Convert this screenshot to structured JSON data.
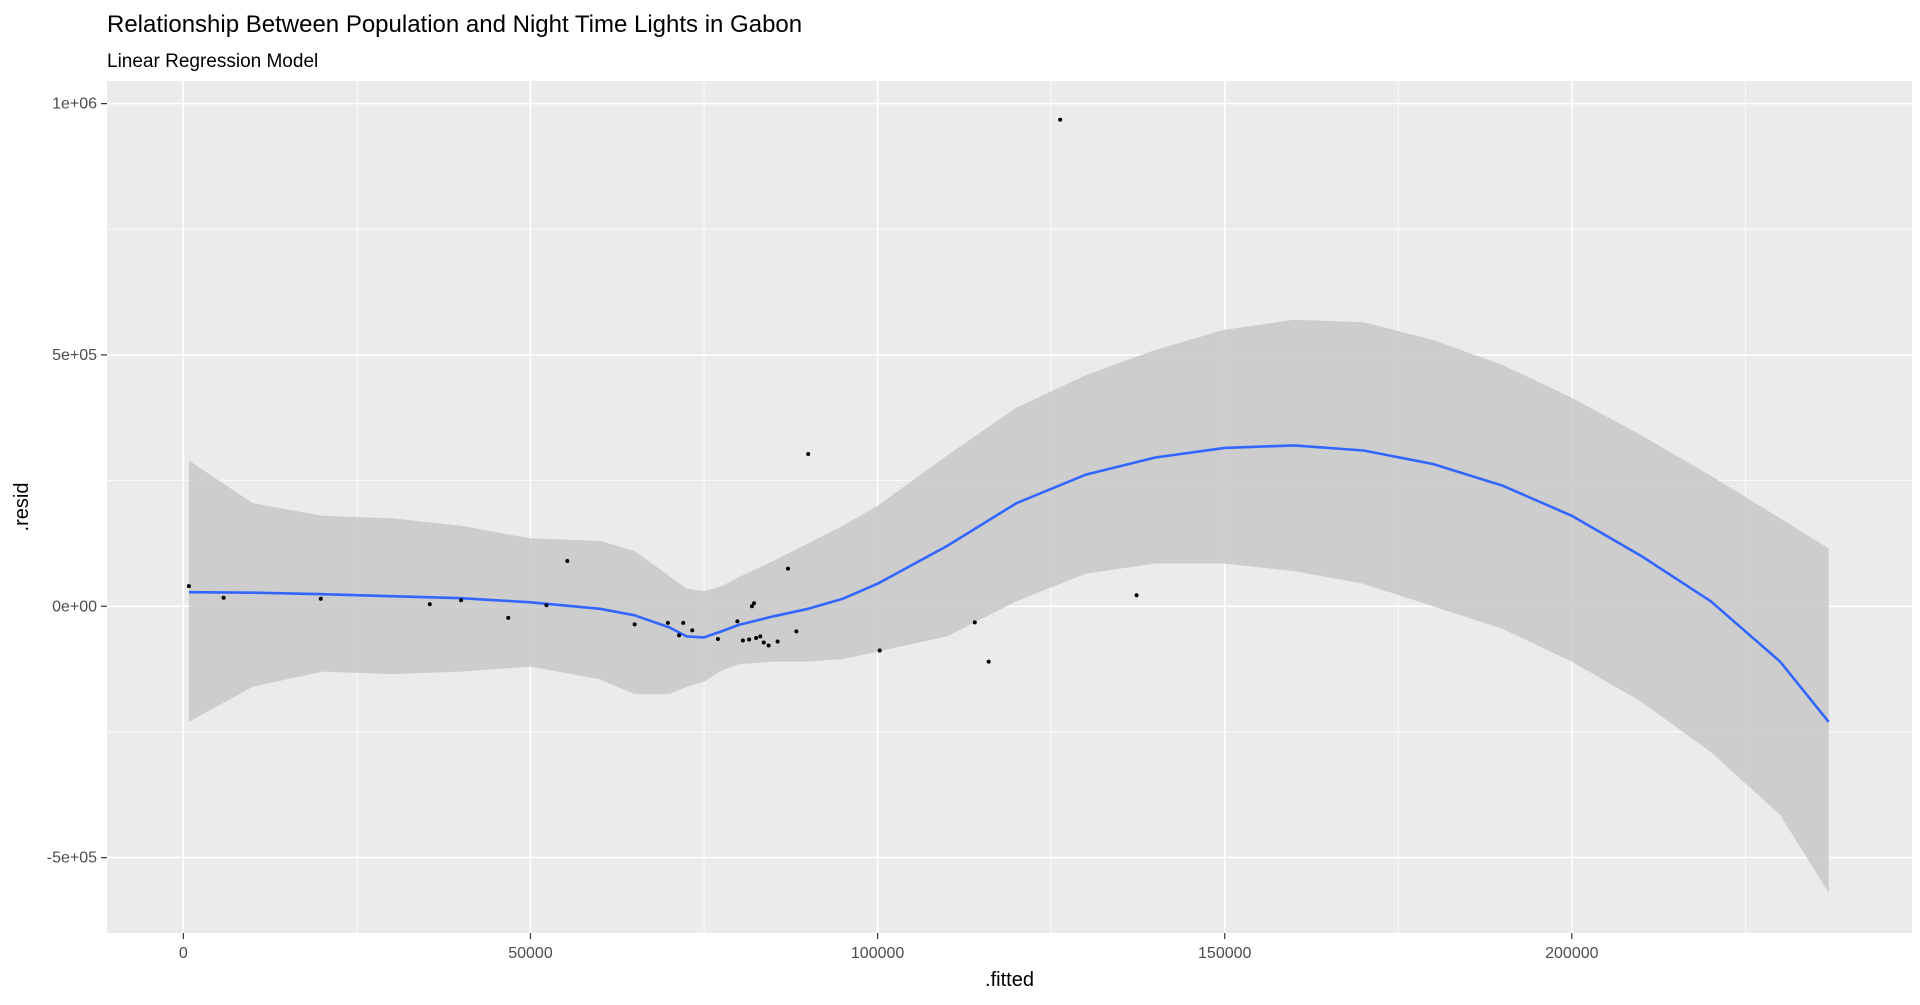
{
  "chart_data": {
    "type": "scatter",
    "title": "Relationship Between Population and Night Time Lights in Gabon",
    "subtitle": "Linear Regression Model",
    "xlabel": ".fitted",
    "ylabel": ".resid",
    "xlim": [
      -11000,
      249000
    ],
    "ylim": [
      -650000,
      1045000
    ],
    "x_ticks": [
      0,
      50000,
      100000,
      150000,
      200000
    ],
    "x_tick_labels": [
      "0",
      "50000",
      "100000",
      "150000",
      "200000"
    ],
    "y_ticks": [
      -500000,
      0,
      500000,
      1000000
    ],
    "y_tick_labels": [
      "-5e+05",
      "0e+00",
      "5e+05",
      "1e+06"
    ],
    "grid": true,
    "colors": {
      "panel_background": "#ebebeb",
      "grid_line": "#ffffff",
      "points": "#000000",
      "smooth_line": "#3366ff",
      "confidence_band": "#c8c8c8"
    },
    "points": [
      {
        "x": 800,
        "y": 40000
      },
      {
        "x": 5800,
        "y": 17000
      },
      {
        "x": 19800,
        "y": 15000
      },
      {
        "x": 35500,
        "y": 4000
      },
      {
        "x": 40000,
        "y": 12000
      },
      {
        "x": 46800,
        "y": -23000
      },
      {
        "x": 52300,
        "y": 2000
      },
      {
        "x": 55300,
        "y": 90000
      },
      {
        "x": 65000,
        "y": -36000
      },
      {
        "x": 69800,
        "y": -33000
      },
      {
        "x": 71400,
        "y": -58000
      },
      {
        "x": 72000,
        "y": -33000
      },
      {
        "x": 73300,
        "y": -48000
      },
      {
        "x": 77000,
        "y": -65000
      },
      {
        "x": 79800,
        "y": -30000
      },
      {
        "x": 80600,
        "y": -68000
      },
      {
        "x": 81500,
        "y": -66000
      },
      {
        "x": 81900,
        "y": 0
      },
      {
        "x": 82200,
        "y": 6000
      },
      {
        "x": 82500,
        "y": -63000
      },
      {
        "x": 83100,
        "y": -60000
      },
      {
        "x": 83600,
        "y": -72000
      },
      {
        "x": 84300,
        "y": -78000
      },
      {
        "x": 85600,
        "y": -70000
      },
      {
        "x": 87100,
        "y": 75000
      },
      {
        "x": 88300,
        "y": -50000
      },
      {
        "x": 90000,
        "y": 303000
      },
      {
        "x": 100300,
        "y": -88000
      },
      {
        "x": 114000,
        "y": -32000
      },
      {
        "x": 116000,
        "y": -110000
      },
      {
        "x": 126300,
        "y": 968000
      },
      {
        "x": 137300,
        "y": 22000
      }
    ],
    "smooth": {
      "method": "loess",
      "x": [
        800,
        10000,
        20000,
        30000,
        40000,
        50000,
        60000,
        65000,
        70000,
        72500,
        75000,
        77500,
        80000,
        85000,
        90000,
        95000,
        100000,
        110000,
        120000,
        130000,
        140000,
        150000,
        160000,
        170000,
        180000,
        190000,
        200000,
        210000,
        220000,
        230000,
        237000
      ],
      "y": [
        28000,
        27000,
        24000,
        20000,
        16000,
        8000,
        -5000,
        -18000,
        -42000,
        -60000,
        -62000,
        -50000,
        -37000,
        -20000,
        -5000,
        15000,
        45000,
        120000,
        205000,
        262000,
        296000,
        315000,
        320000,
        310000,
        283000,
        240000,
        180000,
        100000,
        10000,
        -110000,
        -230000
      ],
      "upper": [
        290000,
        205000,
        180000,
        175000,
        160000,
        135000,
        130000,
        110000,
        60000,
        35000,
        30000,
        40000,
        58000,
        90000,
        125000,
        160000,
        200000,
        300000,
        395000,
        460000,
        510000,
        550000,
        570000,
        565000,
        530000,
        480000,
        415000,
        340000,
        260000,
        175000,
        115000
      ],
      "lower": [
        -230000,
        -160000,
        -130000,
        -135000,
        -130000,
        -120000,
        -145000,
        -175000,
        -175000,
        -160000,
        -150000,
        -128000,
        -115000,
        -110000,
        -110000,
        -105000,
        -90000,
        -60000,
        10000,
        65000,
        85000,
        85000,
        70000,
        45000,
        0,
        -45000,
        -110000,
        -190000,
        -290000,
        -415000,
        -570000
      ]
    }
  }
}
